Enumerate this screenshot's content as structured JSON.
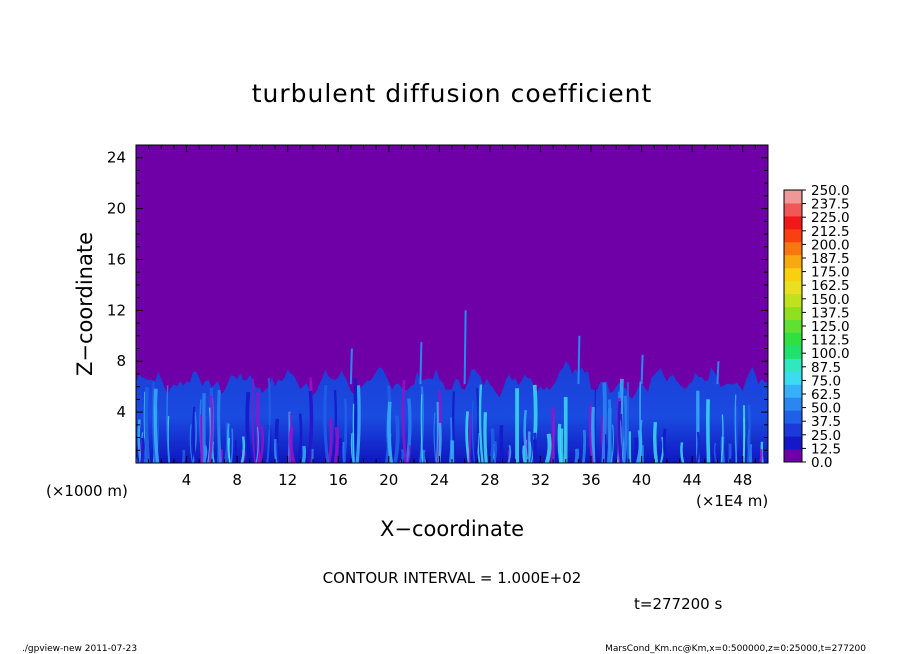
{
  "chart_data": {
    "type": "heatmap",
    "title": "turbulent diffusion coefficient",
    "xlabel": "X−coordinate",
    "ylabel": "Z−coordinate",
    "x_unit_left": "(×1000 m)",
    "x_unit_right": "(×1E4 m)",
    "xlim": [
      0,
      50
    ],
    "ylim": [
      0,
      25
    ],
    "xticks": [
      4,
      8,
      12,
      16,
      20,
      24,
      28,
      32,
      36,
      40,
      44,
      48
    ],
    "yticks": [
      4,
      8,
      12,
      16,
      20,
      24
    ],
    "colorbar": {
      "levels": [
        "0.0",
        "12.5",
        "25.0",
        "37.5",
        "50.0",
        "62.5",
        "75.0",
        "87.5",
        "100.0",
        "112.5",
        "125.0",
        "137.5",
        "150.0",
        "162.5",
        "175.0",
        "187.5",
        "200.0",
        "212.5",
        "225.0",
        "237.5",
        "250.0"
      ],
      "colors": [
        "#6f00a8",
        "#1418c8",
        "#1c3ad8",
        "#2060e8",
        "#2a86f0",
        "#36b0f8",
        "#3cdcf0",
        "#30e8c0",
        "#20e070",
        "#30e040",
        "#60e030",
        "#90e020",
        "#c0e020",
        "#e8e020",
        "#f8d010",
        "#f8a810",
        "#f87810",
        "#f84010",
        "#f01818",
        "#f05858",
        "#f09898"
      ]
    },
    "background_value": 0.0,
    "turbulent_layer_top_approx": 7,
    "max_plume_height_approx": 10,
    "contour_interval_text": "CONTOUR INTERVAL = 1.000E+02",
    "time_text": "t=277200 s"
  },
  "footer": {
    "left": "./gpview-new   2011-07-23",
    "right": "MarsCond_Km.nc@Km,x=0:500000,z=0:25000,t=277200"
  }
}
